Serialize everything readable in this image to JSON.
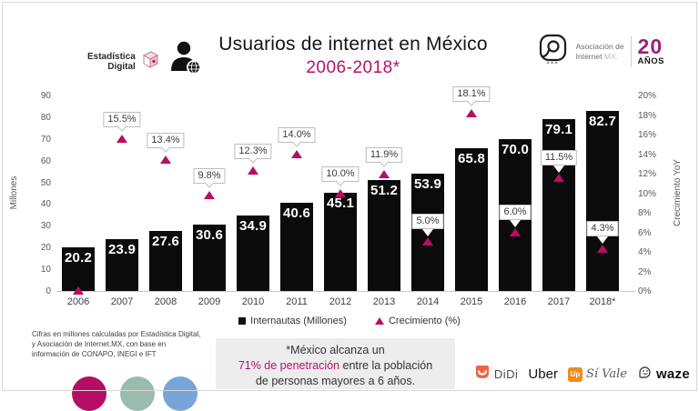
{
  "header": {
    "brand_left": {
      "line1": "Estadística",
      "line2": "Digital"
    },
    "title": "Usuarios de internet en México",
    "subtitle": "2006-2018*",
    "brand_right": {
      "org_line1": "Asociación de",
      "org_line2": "Internet",
      "org_suffix": "MX.",
      "anniversary_number": "20",
      "anniversary_label": "AÑOS"
    }
  },
  "chart_data": {
    "type": "bar",
    "title": "Usuarios de internet en México 2006-2018",
    "categories": [
      "2006",
      "2007",
      "2008",
      "2009",
      "2010",
      "2011",
      "2012",
      "2013",
      "2014",
      "2015",
      "2016",
      "2017",
      "2018*"
    ],
    "series": [
      {
        "name": "Internautas (Millones)",
        "type": "bar",
        "values": [
          20.2,
          23.9,
          27.6,
          30.6,
          34.9,
          40.6,
          45.1,
          51.2,
          53.9,
          65.8,
          70.0,
          79.1,
          82.7
        ]
      },
      {
        "name": "Crecimiento (%)",
        "type": "point",
        "values": [
          0,
          15.5,
          13.4,
          9.8,
          12.3,
          14.0,
          10.0,
          11.9,
          5.0,
          18.1,
          6.0,
          11.5,
          4.3
        ],
        "labels": [
          "",
          "15.5%",
          "13.4%",
          "9.8%",
          "12.3%",
          "14.0%",
          "10.0%",
          "11.9%",
          "5.0%",
          "18.1%",
          "6.0%",
          "11.5%",
          "4.3%"
        ]
      }
    ],
    "bar_value_labels": [
      "20.2",
      "23.9",
      "27.6",
      "30.6",
      "34.9",
      "40.6",
      "45.1",
      "51.2",
      "53.9",
      "65.8",
      "70.0",
      "79.1",
      "82.7"
    ],
    "ylabel_left": "Millones",
    "ylabel_right": "Crecimiento YoY",
    "ylim_left": [
      0,
      90
    ],
    "ylim_right_pct": [
      0,
      20
    ],
    "yticks_left": [
      0,
      10,
      20,
      30,
      40,
      50,
      60,
      70,
      80,
      90
    ],
    "yticks_right": [
      "0%",
      "2%",
      "4%",
      "6%",
      "8%",
      "10%",
      "12%",
      "14%",
      "16%",
      "18%",
      "20%"
    ],
    "grid": false,
    "legend_position": "bottom-center",
    "colors": {
      "bar": "#0b0b0b",
      "marker": "#ba0d66"
    }
  },
  "legend": {
    "items": [
      {
        "label": "Internautas (Millones)",
        "marker": "square",
        "color": "#111111"
      },
      {
        "label": "Crecimiento (%)",
        "marker": "triangle",
        "color": "#ba0d66"
      }
    ]
  },
  "footnote": {
    "line1": "Cifras en millones calculadas por Estadística Digital,",
    "line2": "y Asociación de Internet.MX, con base en",
    "line3": "información de CONAPO, INEGI e IFT"
  },
  "note": {
    "line1": "*México alcanza un",
    "highlight": "71% de penetración",
    "line2_rest": " entre la población",
    "line3": "de personas mayores a 6 años."
  },
  "partners": {
    "didi": "DiDi",
    "uber": "Uber",
    "up": "Up",
    "sivale": "Sí Vale",
    "waze": "waze"
  },
  "colors": {
    "accent": "#b51366",
    "accent2": "#a1217b",
    "circle1": "#b60d64",
    "circle2": "#9abcae",
    "circle3": "#78a5d8"
  }
}
